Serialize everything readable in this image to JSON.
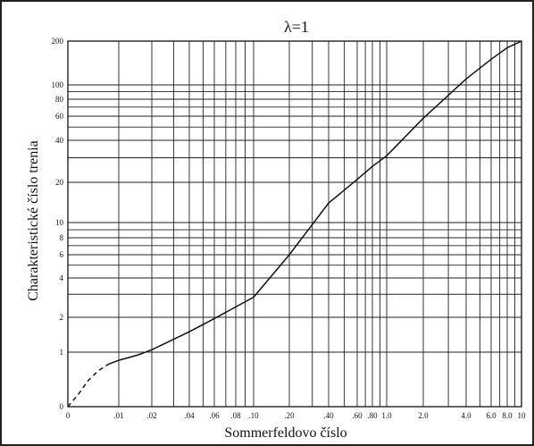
{
  "chart_data": {
    "type": "line",
    "title": "λ=1",
    "xlabel": "Sommerfeldovo číslo",
    "ylabel": "Charakteristické číslo trenia",
    "x_tick_labels": [
      "0",
      ".01",
      ".02",
      ".04",
      ".06",
      ".08",
      ".10",
      ".20",
      ".40",
      ".60",
      ".80",
      "1.0",
      "2.0",
      "4.0",
      "6.0",
      "8.0",
      "10"
    ],
    "y_tick_labels": [
      "0",
      "1",
      "2",
      "4",
      "6",
      "8",
      "10",
      "20",
      "40",
      "60",
      "80",
      "100",
      "200"
    ],
    "x_tick_values": [
      0,
      0.01,
      0.02,
      0.04,
      0.06,
      0.08,
      0.1,
      0.2,
      0.4,
      0.6,
      0.8,
      1.0,
      2.0,
      4.0,
      6.0,
      8.0,
      10.0
    ],
    "y_tick_values": [
      0,
      1,
      2,
      4,
      6,
      8,
      10,
      20,
      40,
      60,
      80,
      100,
      200
    ],
    "xlim": [
      0,
      10
    ],
    "ylim": [
      0,
      200
    ],
    "grid": true,
    "series": [
      {
        "style": "solid",
        "x": [
          0.008,
          0.01,
          0.015,
          0.02,
          0.04,
          0.06,
          0.08,
          0.1,
          0.2,
          0.4,
          0.6,
          0.8,
          1.0,
          2.0,
          4.0,
          6.0,
          8.0,
          10.0
        ],
        "y": [
          0.78,
          0.85,
          0.95,
          1.05,
          1.5,
          1.95,
          2.4,
          2.85,
          6.0,
          14.0,
          21.0,
          26.0,
          31.0,
          58.0,
          110.0,
          150.0,
          180.0,
          200.0
        ]
      },
      {
        "style": "dashed",
        "x": [
          0.0,
          0.002,
          0.004,
          0.006,
          0.008
        ],
        "y": [
          0.0,
          0.22,
          0.48,
          0.66,
          0.78
        ]
      }
    ]
  }
}
